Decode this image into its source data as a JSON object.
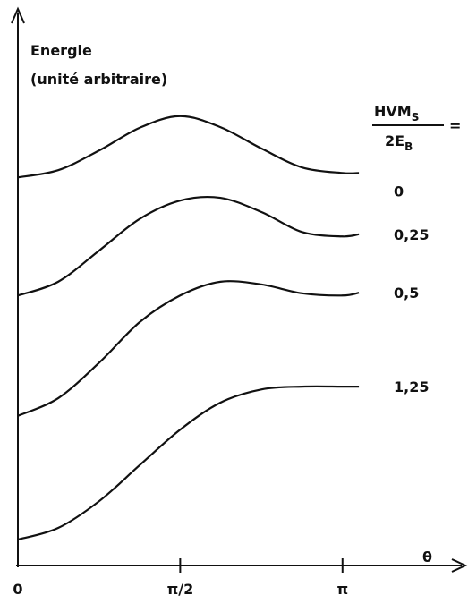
{
  "chart_data": {
    "type": "line",
    "y_label": [
      "Energie",
      "(unité arbitraire)"
    ],
    "x_label": "θ",
    "legend_title": {
      "numerator": "HVM",
      "numerator_sub": "S",
      "denominator": "2E",
      "denominator_sub": "B",
      "suffix": "="
    },
    "x": [
      0,
      0.39,
      0.79,
      1.18,
      1.57,
      1.96,
      2.36,
      2.75,
      3.14,
      3.3
    ],
    "xlim": [
      0,
      4.33
    ],
    "xticks": [
      0,
      {
        "value": 1.5708,
        "label": "π/2"
      },
      {
        "value": 3.1416,
        "label": "π"
      }
    ],
    "ylim": [
      0,
      10
    ],
    "color": "#111111",
    "series": [
      {
        "name": "0",
        "values": [
          7.03,
          7.16,
          7.52,
          7.93,
          8.14,
          7.94,
          7.55,
          7.21,
          7.11,
          7.11
        ]
      },
      {
        "name": "0,25",
        "values": [
          4.89,
          5.14,
          5.71,
          6.28,
          6.61,
          6.66,
          6.4,
          6.04,
          5.96,
          6.0
        ]
      },
      {
        "name": "0,5",
        "values": [
          2.71,
          3.03,
          3.68,
          4.41,
          4.89,
          5.14,
          5.09,
          4.93,
          4.89,
          4.94
        ]
      },
      {
        "name": "1,25",
        "values": [
          0.47,
          0.68,
          1.17,
          1.82,
          2.46,
          2.95,
          3.19,
          3.24,
          3.24,
          3.24
        ]
      }
    ]
  }
}
